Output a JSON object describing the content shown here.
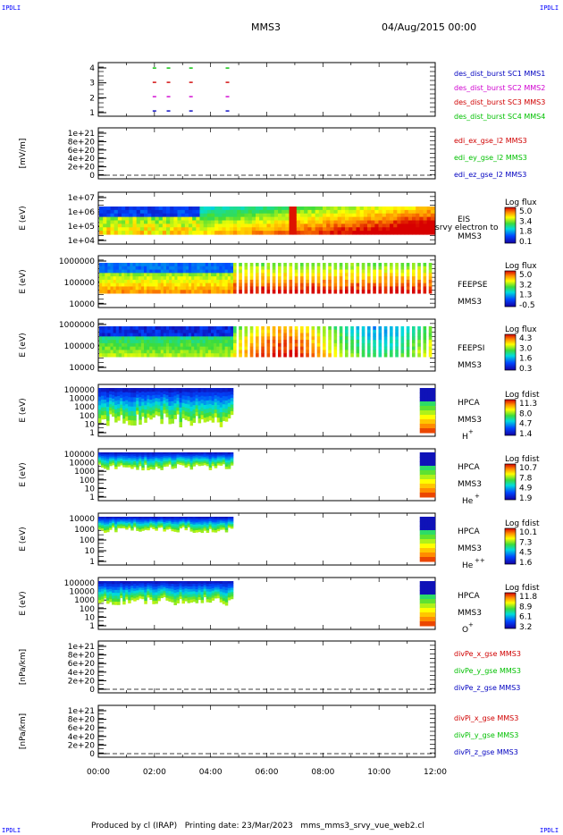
{
  "header": {
    "corner_label": "IPDLI",
    "spacecraft": "MMS3",
    "date": "04/Aug/2015 00:00"
  },
  "footer": {
    "produced_by": "Produced by cl (IRAP)",
    "printing_date": "Printing date: 23/Mar/2023",
    "filename": "mms_mms3_srvy_vue_web2.cl"
  },
  "colors": {
    "red": "#d00000",
    "green": "#00c000",
    "blue": "#0000c0",
    "magenta": "#d000d0"
  },
  "chart_data": [
    {
      "type": "scatter",
      "panel": "burst",
      "y_ticks": [
        "1",
        "2",
        "3",
        "4"
      ],
      "legend": [
        {
          "label": "des_dist_burst SC1 MMS1",
          "color": "#0000c0"
        },
        {
          "label": "des_dist_burst SC2 MMS2",
          "color": "#d000d0"
        },
        {
          "label": "des_dist_burst SC3 MMS3",
          "color": "#d00000"
        },
        {
          "label": "des_dist_burst SC4 MMS4",
          "color": "#00c000"
        }
      ],
      "series": [
        {
          "name": "SC1",
          "y": 1,
          "x_hours": [
            2.0,
            2.5,
            3.3,
            4.6
          ]
        },
        {
          "name": "SC2",
          "y": 2,
          "x_hours": [
            2.0,
            2.5,
            3.3,
            4.6
          ]
        },
        {
          "name": "SC3",
          "y": 3,
          "x_hours": [
            2.0,
            2.5,
            3.3,
            4.6
          ]
        },
        {
          "name": "SC4",
          "y": 4,
          "x_hours": [
            2.0,
            2.5,
            3.3,
            4.6
          ]
        }
      ]
    },
    {
      "type": "line",
      "panel": "efield",
      "ylabel": "[mV/m]",
      "y_ticks": [
        "1e+21",
        "8e+20",
        "6e+20",
        "4e+20",
        "2e+20",
        "0"
      ],
      "legend": [
        {
          "label": "edi_ex_gse_l2 MMS3",
          "color": "#d00000"
        },
        {
          "label": "edi_ey_gse_l2 MMS3",
          "color": "#00c000"
        },
        {
          "label": "edi_ez_gse_l2 MMS3",
          "color": "#0000c0"
        }
      ]
    },
    {
      "type": "heatmap",
      "panel": "eis",
      "ylabel": "E (eV)",
      "y_ticks": [
        "1e+07",
        "1e+06",
        "1e+05",
        "1e+04"
      ],
      "labels": [
        "EIS",
        "MMS3"
      ],
      "overflow_text": "srvy electron to",
      "colorbar_title": "Log flux",
      "colorbar_ticks": [
        "5.0",
        "3.4",
        "1.8",
        "0.1"
      ]
    },
    {
      "type": "heatmap",
      "panel": "feeps_e",
      "ylabel": "E (eV)",
      "y_ticks": [
        "1000000",
        "100000",
        "10000"
      ],
      "labels": [
        "FEEPSE",
        "MMS3"
      ],
      "colorbar_title": "Log flux",
      "colorbar_ticks": [
        "5.0",
        "3.2",
        "1.3",
        "-0.5"
      ]
    },
    {
      "type": "heatmap",
      "panel": "feeps_i",
      "ylabel": "E (eV)",
      "y_ticks": [
        "1000000",
        "100000",
        "10000"
      ],
      "labels": [
        "FEEPSI",
        "MMS3"
      ],
      "colorbar_title": "Log flux",
      "colorbar_ticks": [
        "4.3",
        "3.0",
        "1.6",
        "0.3"
      ]
    },
    {
      "type": "heatmap",
      "panel": "hpca_h",
      "ylabel": "E (eV)",
      "y_ticks": [
        "100000",
        "10000",
        "1000",
        "100",
        "10",
        "1"
      ],
      "labels": [
        "HPCA",
        "MMS3"
      ],
      "species": "H",
      "species_charge": "+",
      "colorbar_title": "Log fdist",
      "colorbar_ticks": [
        "11.3",
        "8.0",
        "4.7",
        "1.4"
      ]
    },
    {
      "type": "heatmap",
      "panel": "hpca_he1",
      "ylabel": "E (eV)",
      "y_ticks": [
        "100000",
        "10000",
        "1000",
        "100",
        "10",
        "1"
      ],
      "labels": [
        "HPCA",
        "MMS3"
      ],
      "species": "He",
      "species_charge": "+",
      "colorbar_title": "Log fdist",
      "colorbar_ticks": [
        "10.7",
        "7.8",
        "4.9",
        "1.9"
      ]
    },
    {
      "type": "heatmap",
      "panel": "hpca_he2",
      "ylabel": "E (eV)",
      "y_ticks": [
        "10000",
        "1000",
        "100",
        "10",
        "1"
      ],
      "labels": [
        "HPCA",
        "MMS3"
      ],
      "species": "He",
      "species_charge": "++",
      "colorbar_title": "Log fdist",
      "colorbar_ticks": [
        "10.1",
        "7.3",
        "4.5",
        "1.6"
      ]
    },
    {
      "type": "heatmap",
      "panel": "hpca_o",
      "ylabel": "E (eV)",
      "y_ticks": [
        "100000",
        "10000",
        "1000",
        "100",
        "10",
        "1"
      ],
      "labels": [
        "HPCA",
        "MMS3"
      ],
      "species": "O",
      "species_charge": "+",
      "colorbar_title": "Log fdist",
      "colorbar_ticks": [
        "11.8",
        "8.9",
        "6.1",
        "3.2"
      ]
    },
    {
      "type": "line",
      "panel": "divpe",
      "ylabel": "[nPa/km]",
      "y_ticks": [
        "1e+21",
        "8e+20",
        "6e+20",
        "4e+20",
        "2e+20",
        "0"
      ],
      "legend": [
        {
          "label": "divPe_x_gse MMS3",
          "color": "#d00000"
        },
        {
          "label": "divPe_y_gse MMS3",
          "color": "#00c000"
        },
        {
          "label": "divPe_z_gse MMS3",
          "color": "#0000c0"
        }
      ]
    },
    {
      "type": "line",
      "panel": "divpi",
      "ylabel": "[nPa/km]",
      "y_ticks": [
        "1e+21",
        "8e+20",
        "6e+20",
        "4e+20",
        "2e+20",
        "0"
      ],
      "legend": [
        {
          "label": "divPi_x_gse MMS3",
          "color": "#d00000"
        },
        {
          "label": "divPi_y_gse MMS3",
          "color": "#00c000"
        },
        {
          "label": "divPi_z_gse MMS3",
          "color": "#0000c0"
        }
      ]
    }
  ],
  "x_axis": {
    "ticks": [
      "00:00",
      "02:00",
      "04:00",
      "06:00",
      "08:00",
      "10:00",
      "12:00"
    ],
    "range_hours": [
      0,
      12
    ]
  }
}
